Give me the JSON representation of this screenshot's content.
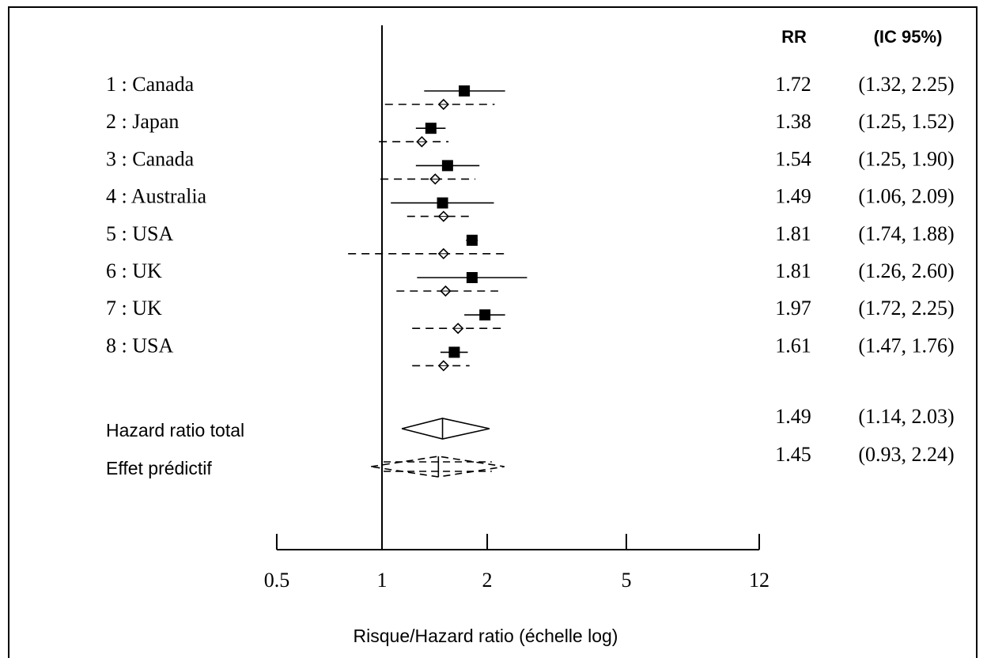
{
  "chart_data": {
    "type": "forest",
    "x_scale": "log",
    "xlim": [
      0.5,
      12
    ],
    "xticks": [
      "0.5",
      "1",
      "2",
      "5",
      "12"
    ],
    "xlabel": "Risque/Hazard ratio (échelle log)",
    "column_headers": {
      "rr": "RR",
      "ci": "(IC 95%)"
    },
    "studies": [
      {
        "label": "1 : Canada",
        "rr": "1.72",
        "ci": "(1.32, 2.25)",
        "est": 1.72,
        "lo": 1.32,
        "hi": 2.25,
        "adj_est": 1.5,
        "adj_lo": 1.02,
        "adj_hi": 2.1
      },
      {
        "label": "2 : Japan",
        "rr": "1.38",
        "ci": "(1.25, 1.52)",
        "est": 1.38,
        "lo": 1.25,
        "hi": 1.52,
        "adj_est": 1.3,
        "adj_lo": 0.98,
        "adj_hi": 1.55
      },
      {
        "label": "3 : Canada",
        "rr": "1.54",
        "ci": "(1.25, 1.90)",
        "est": 1.54,
        "lo": 1.25,
        "hi": 1.9,
        "adj_est": 1.42,
        "adj_lo": 0.99,
        "adj_hi": 1.85
      },
      {
        "label": "4 : Australia",
        "rr": "1.49",
        "ci": "(1.06, 2.09)",
        "est": 1.49,
        "lo": 1.06,
        "hi": 2.09,
        "adj_est": 1.5,
        "adj_lo": 1.18,
        "adj_hi": 1.8
      },
      {
        "label": "5 : USA",
        "rr": "1.81",
        "ci": "(1.74, 1.88)",
        "est": 1.81,
        "lo": 1.74,
        "hi": 1.88,
        "adj_est": 1.5,
        "adj_lo": 0.8,
        "adj_hi": 2.3
      },
      {
        "label": "6 : UK",
        "rr": "1.81",
        "ci": "(1.26, 2.60)",
        "est": 1.81,
        "lo": 1.26,
        "hi": 2.6,
        "adj_est": 1.52,
        "adj_lo": 1.1,
        "adj_hi": 2.15
      },
      {
        "label": "7 : UK",
        "rr": "1.97",
        "ci": "(1.72, 2.25)",
        "est": 1.97,
        "lo": 1.72,
        "hi": 2.25,
        "adj_est": 1.65,
        "adj_lo": 1.22,
        "adj_hi": 2.25
      },
      {
        "label": "8 : USA",
        "rr": "1.61",
        "ci": "(1.47, 1.76)",
        "est": 1.61,
        "lo": 1.47,
        "hi": 1.76,
        "adj_est": 1.5,
        "adj_lo": 1.22,
        "adj_hi": 1.78
      }
    ],
    "summary": [
      {
        "label": "Hazard ratio total",
        "rr": "1.49",
        "ci": "(1.14, 2.03)",
        "est": 1.49,
        "lo": 1.14,
        "hi": 2.03,
        "style": "solid"
      },
      {
        "label": "Effet prédictif",
        "rr": "1.45",
        "ci": "(0.93, 2.24)",
        "est": 1.45,
        "lo": 0.93,
        "hi": 2.24,
        "style": "dashed"
      }
    ]
  }
}
